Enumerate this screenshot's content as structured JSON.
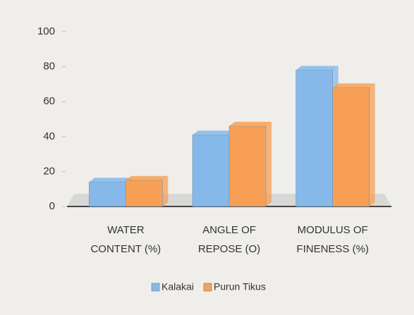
{
  "chart_data": {
    "type": "bar",
    "categories": [
      [
        "WATER",
        "CONTENT (%)"
      ],
      [
        "ANGLE OF",
        "REPOSE  (O)"
      ],
      [
        "MODULUS OF",
        "FINENESS (%)"
      ]
    ],
    "series": [
      {
        "name": "Kalakai",
        "color": "#86b9ea",
        "values": [
          14,
          41,
          78
        ]
      },
      {
        "name": "Purun Tikus",
        "color": "#f7a055",
        "values": [
          15,
          46,
          68
        ]
      }
    ],
    "ylim": [
      0,
      100
    ],
    "yticks": [
      0,
      20,
      40,
      60,
      80,
      100
    ],
    "legend": "bottom"
  }
}
